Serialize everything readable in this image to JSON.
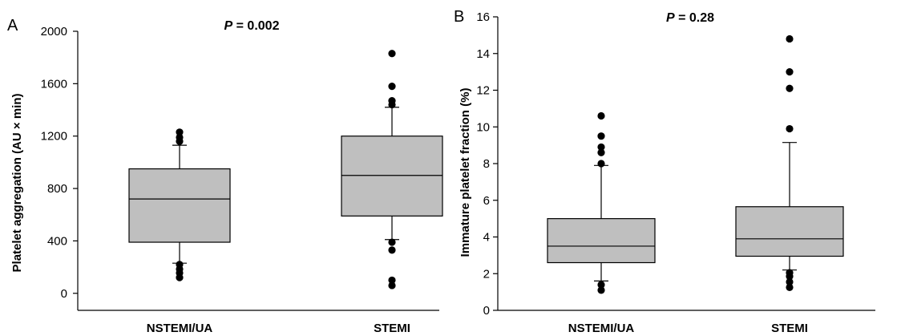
{
  "figure": {
    "background": "#ffffff",
    "box_fill": "#bfbfbf",
    "line_color": "#000000"
  },
  "chart_data": [
    {
      "type": "boxplot",
      "panel_label": "A",
      "annotation": {
        "italic": "P",
        "rest": " = 0.002"
      },
      "title": "",
      "ylabel": "Platelet aggregation (AU × min)",
      "xlabel": "",
      "ylim": [
        -130,
        2000
      ],
      "yticks": [
        0,
        400,
        800,
        1200,
        1600,
        2000
      ],
      "categories": [
        "NSTEMI/UA",
        "STEMI"
      ],
      "grid": false,
      "legend": "none",
      "boxes": [
        {
          "category": "NSTEMI/UA",
          "whisker_low": 230,
          "q1": 390,
          "median": 720,
          "q3": 950,
          "whisker_high": 1130,
          "outliers": [
            120,
            155,
            185,
            220,
            1160,
            1190,
            1230
          ]
        },
        {
          "category": "STEMI",
          "whisker_low": 410,
          "q1": 590,
          "median": 900,
          "q3": 1200,
          "whisker_high": 1420,
          "outliers": [
            60,
            100,
            330,
            390,
            1440,
            1470,
            1580,
            1830
          ]
        }
      ]
    },
    {
      "type": "boxplot",
      "panel_label": "B",
      "annotation": {
        "italic": "P",
        "rest": " = 0.28"
      },
      "title": "",
      "ylabel": "Immature platelet fraction (%)",
      "xlabel": "",
      "ylim": [
        0,
        16
      ],
      "yticks": [
        0,
        2,
        4,
        6,
        8,
        10,
        12,
        14,
        16
      ],
      "categories": [
        "NSTEMI/UA",
        "STEMI"
      ],
      "grid": false,
      "legend": "none",
      "boxes": [
        {
          "category": "NSTEMI/UA",
          "whisker_low": 1.6,
          "q1": 2.6,
          "median": 3.5,
          "q3": 5.0,
          "whisker_high": 7.9,
          "outliers": [
            1.1,
            1.4,
            8.0,
            8.6,
            8.9,
            9.5,
            10.6
          ]
        },
        {
          "category": "STEMI",
          "whisker_low": 2.2,
          "q1": 2.95,
          "median": 3.9,
          "q3": 5.65,
          "whisker_high": 9.15,
          "outliers": [
            1.25,
            1.55,
            1.85,
            2.05,
            9.9,
            12.1,
            13.0,
            14.8
          ]
        }
      ]
    }
  ]
}
